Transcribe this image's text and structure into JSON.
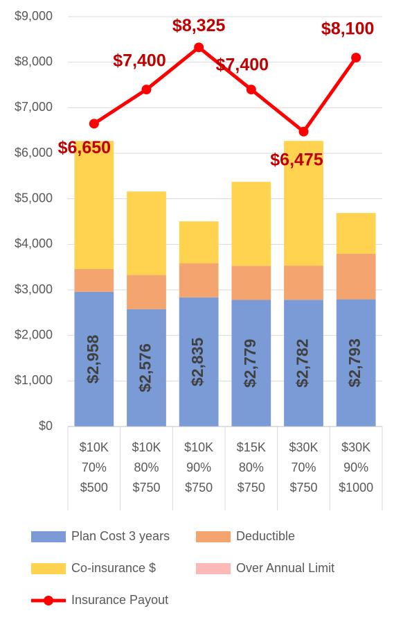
{
  "chart_data": {
    "type": "bar",
    "categories": [
      [
        "$10K",
        "70%",
        "$500"
      ],
      [
        "$10K",
        "80%",
        "$750"
      ],
      [
        "$10K",
        "90%",
        "$750"
      ],
      [
        "$15K",
        "80%",
        "$750"
      ],
      [
        "$30K",
        "70%",
        "$750"
      ],
      [
        "$30K",
        "90%",
        "$1000"
      ]
    ],
    "stacked": true,
    "series": [
      {
        "name": "Plan Cost 3 years",
        "color": "#7b9bd6",
        "values": [
          2958,
          2576,
          2835,
          2779,
          2782,
          2793
        ],
        "value_labels": [
          "$2,958",
          "$2,576",
          "$2,835",
          "$2,779",
          "$2,782",
          "$2,793"
        ]
      },
      {
        "name": "Deductible",
        "color": "#f4a46e",
        "values": [
          500,
          750,
          750,
          750,
          750,
          1000
        ]
      },
      {
        "name": "Co-insurance $",
        "color": "#ffd24f",
        "values": [
          2813,
          1834,
          920,
          1844,
          2739,
          895
        ]
      },
      {
        "name": "Over Annual Limit",
        "color": "#ffb8b8",
        "values": [
          0,
          0,
          0,
          0,
          0,
          0
        ]
      },
      {
        "name": "Insurance Payout",
        "type": "line",
        "color": "#ff0000",
        "values": [
          6650,
          7400,
          8325,
          7400,
          6475,
          8100
        ],
        "value_labels": [
          "$6,650",
          "$7,400",
          "$8,325",
          "$7,400",
          "$6,475",
          "$8,100"
        ]
      }
    ],
    "ylim": [
      0,
      9000
    ],
    "yticks": [
      {
        "value": 0,
        "label": "$0"
      },
      {
        "value": 1000,
        "label": "$1,000"
      },
      {
        "value": 2000,
        "label": "$2,000"
      },
      {
        "value": 3000,
        "label": "$3,000"
      },
      {
        "value": 4000,
        "label": "$4,000"
      },
      {
        "value": 5000,
        "label": "$5,000"
      },
      {
        "value": 6000,
        "label": "$6,000"
      },
      {
        "value": 7000,
        "label": "$7,000"
      },
      {
        "value": 8000,
        "label": "$8,000"
      },
      {
        "value": 9000,
        "label": "$9,000"
      }
    ],
    "grid": true
  }
}
